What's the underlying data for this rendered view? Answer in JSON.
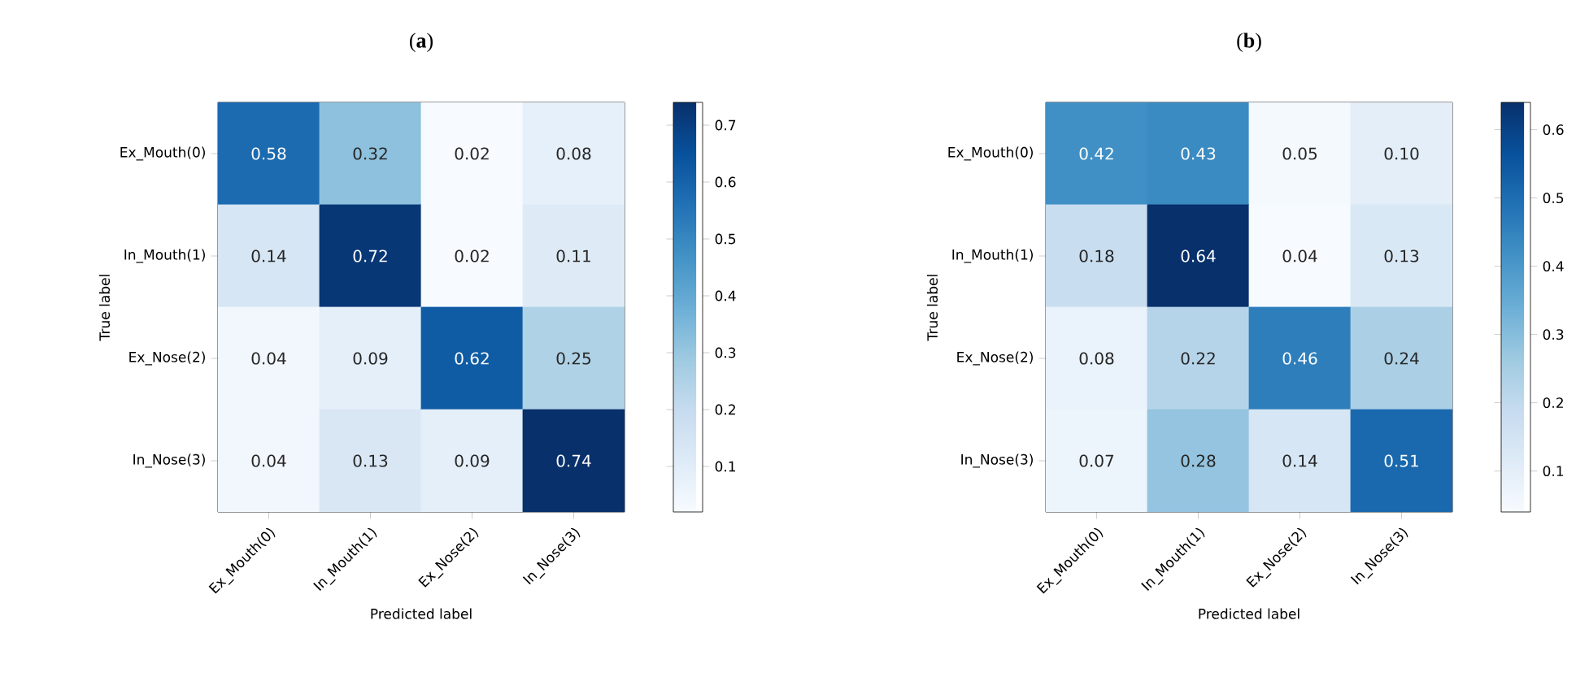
{
  "chart_data": [
    {
      "type": "heatmap",
      "title": "(**a**)",
      "xlabel": "Predicted label",
      "ylabel": "True label",
      "categories": [
        "Ex_Mouth(0)",
        "In_Mouth(1)",
        "Ex_Nose(2)",
        "In_Nose(3)"
      ],
      "y_categories": [
        "Ex_Mouth(0)",
        "In_Mouth(1)",
        "Ex_Nose(2)",
        "In_Nose(3)"
      ],
      "cells": [
        [
          0.58,
          0.32,
          0.02,
          0.08
        ],
        [
          0.14,
          0.72,
          0.02,
          0.11
        ],
        [
          0.04,
          0.09,
          0.62,
          0.25
        ],
        [
          0.04,
          0.13,
          0.09,
          0.74
        ]
      ],
      "data_labels": true,
      "clim": [
        0.02,
        0.74
      ],
      "cticks": [
        0.1,
        0.2,
        0.3,
        0.4,
        0.5,
        0.6,
        0.7
      ]
    },
    {
      "type": "heatmap",
      "title": "(**b**)",
      "xlabel": "Predicted label",
      "ylabel": "True label",
      "categories": [
        "Ex_Mouth(0)",
        "In_Mouth(1)",
        "Ex_Nose(2)",
        "In_Nose(3)"
      ],
      "y_categories": [
        "Ex_Mouth(0)",
        "In_Mouth(1)",
        "Ex_Nose(2)",
        "In_Nose(3)"
      ],
      "cells": [
        [
          0.42,
          0.43,
          0.05,
          0.1
        ],
        [
          0.18,
          0.64,
          0.04,
          0.13
        ],
        [
          0.08,
          0.22,
          0.46,
          0.24
        ],
        [
          0.07,
          0.28,
          0.14,
          0.51
        ]
      ],
      "cell_labels": [
        [
          "0.42",
          "0.43",
          "0.05",
          "0.10"
        ],
        [
          "0.18",
          "0.64",
          "0.04",
          "0.13"
        ],
        [
          "0.08",
          "0.22",
          "0.46",
          "0.24"
        ],
        [
          "0.07",
          "0.28",
          "0.14",
          "0.51"
        ]
      ],
      "data_labels": true,
      "clim": [
        0.04,
        0.64
      ],
      "cticks": [
        0.1,
        0.2,
        0.3,
        0.4,
        0.5,
        0.6
      ]
    }
  ]
}
